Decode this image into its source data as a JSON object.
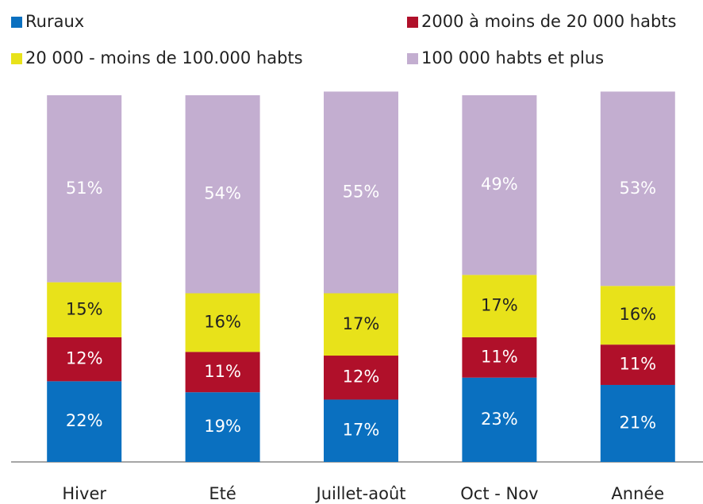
{
  "chart_data": {
    "type": "stacked_bar",
    "categories": [
      "Hiver",
      "Eté",
      "Juillet-août",
      "Oct - Nov",
      "Année"
    ],
    "ylim": [
      0,
      100
    ],
    "series": [
      {
        "name": "Ruraux",
        "color": "#0a70c0",
        "values": [
          22,
          19,
          17,
          23,
          21
        ],
        "value_labels": [
          "22%",
          "19%",
          "17%",
          "23%",
          "21%"
        ]
      },
      {
        "name": "2000 à moins de 20 000 habts",
        "color": "#b0102a",
        "values": [
          12,
          11,
          12,
          11,
          11
        ],
        "value_labels": [
          "12%",
          "11%",
          "12%",
          "11%",
          "11%"
        ]
      },
      {
        "name": "20 000 -  moins de 100.000 habts",
        "color": "#e8e21a",
        "values": [
          15,
          16,
          17,
          17,
          16
        ],
        "value_labels": [
          "15%",
          "16%",
          "17%",
          "17%",
          "16%"
        ]
      },
      {
        "name": "100 000 habts et plus",
        "color": "#c3aed0",
        "values": [
          51,
          54,
          55,
          49,
          53
        ],
        "value_labels": [
          "51%",
          "54%",
          "55%",
          "49%",
          "53%"
        ]
      }
    ]
  }
}
